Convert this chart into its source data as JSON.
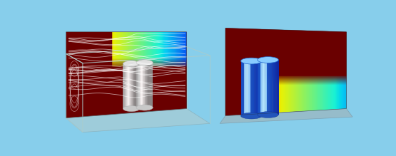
{
  "bg_color": "#87CEEB",
  "fig_width": 5.55,
  "fig_height": 2.19,
  "dpi": 100,
  "colors": {
    "bg": "#87CEEB",
    "dark_red": "#6a0000",
    "wire": "#aacccc",
    "floor_l": "#b8d8e0",
    "floor_r": "#9ab8c2"
  }
}
